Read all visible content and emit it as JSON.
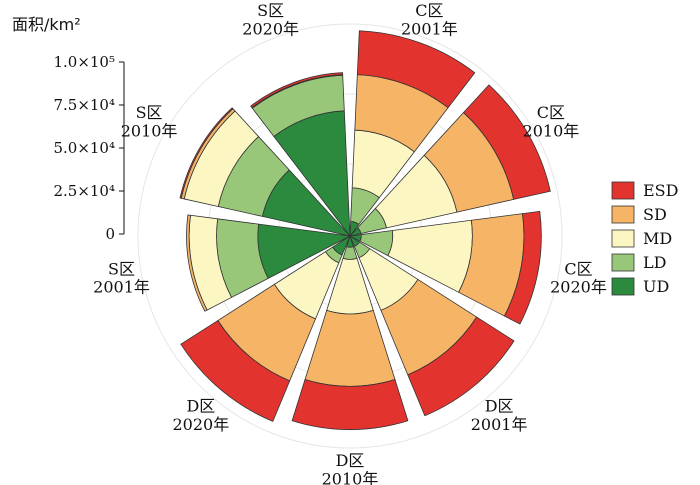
{
  "chart_data": {
    "type": "stacked-polar-bar",
    "title": "",
    "ylabel": "面积/km²",
    "y_tick_labels": [
      "0",
      "2.5×10⁴",
      "5.0×10⁴",
      "7.5×10⁴",
      "1.0×10⁵"
    ],
    "ylim": [
      0,
      100000
    ],
    "grid": true,
    "legend_position": "right",
    "categories": [
      [
        "C区",
        "2001年"
      ],
      [
        "C区",
        "2010年"
      ],
      [
        "C区",
        "2020年"
      ],
      [
        "D区",
        "2001年"
      ],
      [
        "D区",
        "2010年"
      ],
      [
        "D区",
        "2020年"
      ],
      [
        "S区",
        "2001年"
      ],
      [
        "S区",
        "2010年"
      ],
      [
        "S区",
        "2020年"
      ]
    ],
    "series": [
      {
        "name": "UD",
        "color": "#2b8a3e",
        "values": [
          500,
          300,
          300,
          300,
          300,
          1000,
          20000,
          19000,
          37000
        ]
      },
      {
        "name": "LD",
        "color": "#98c77a",
        "values": [
          5000,
          3000,
          4000,
          1000,
          1000,
          1000,
          22000,
          24000,
          24000
        ]
      },
      {
        "name": "MD",
        "color": "#fcf6c2",
        "values": [
          21000,
          25000,
          31000,
          14000,
          13000,
          17000,
          19000,
          25000,
          0
        ]
      },
      {
        "name": "SD",
        "color": "#f6b467",
        "values": [
          35000,
          38000,
          36000,
          38000,
          39000,
          39000,
          2000,
          2500,
          500
        ]
      },
      {
        "name": "ESD",
        "color": "#e3332f",
        "values": [
          38000,
          33000,
          15000,
          36000,
          35000,
          37000,
          0,
          1000,
          1500
        ]
      }
    ]
  }
}
